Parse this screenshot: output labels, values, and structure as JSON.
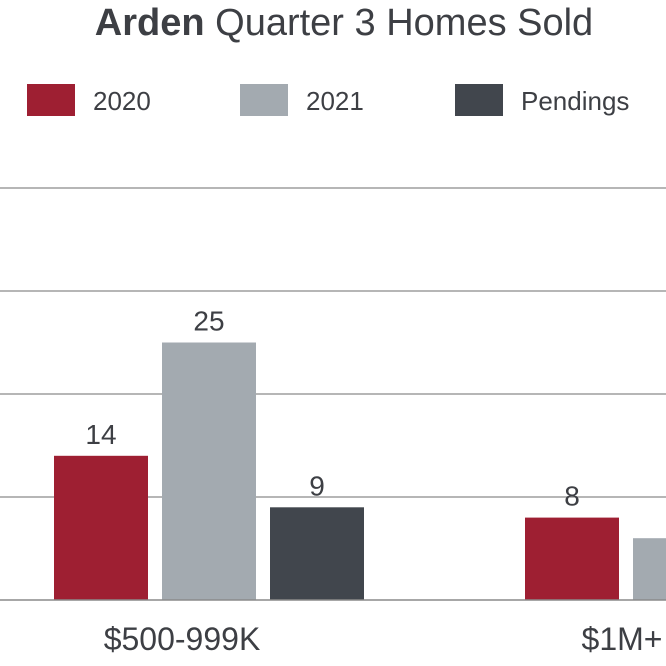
{
  "title": {
    "bold": "Arden",
    "rest": "Quarter 3 Homes Sold"
  },
  "colors": {
    "2020": "#9e1f32",
    "2021": "#a3aab0",
    "Pendings": "#41464d",
    "grid": "#8a8a8a",
    "text": "#3d3f44"
  },
  "chart_data": {
    "type": "bar",
    "title": "Arden Quarter 3 Homes Sold",
    "categories": [
      "$500-999K",
      "$1M+"
    ],
    "series": [
      {
        "name": "2020",
        "values": [
          14,
          8
        ]
      },
      {
        "name": "2021",
        "values": [
          25,
          6
        ]
      },
      {
        "name": "Pendings",
        "values": [
          9,
          null
        ]
      }
    ],
    "value_labels": [
      [
        "14",
        "8"
      ],
      [
        "25",
        ""
      ],
      [
        "9",
        ""
      ]
    ],
    "ylim": [
      0,
      40
    ],
    "grid": true,
    "legend": "top"
  }
}
